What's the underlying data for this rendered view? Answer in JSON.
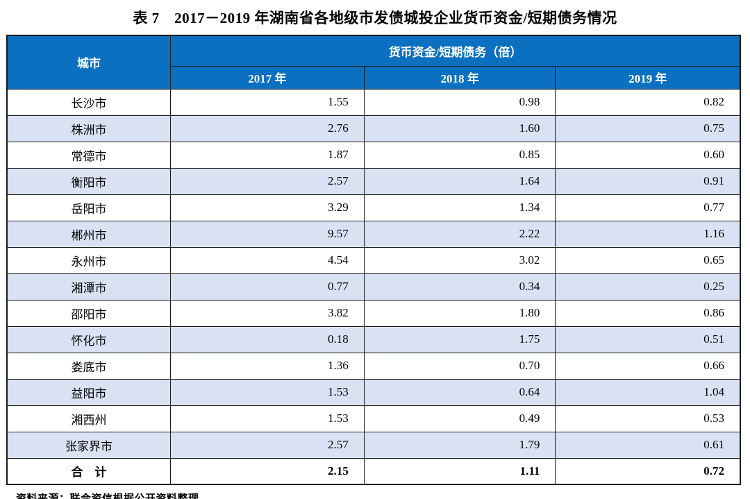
{
  "title": "表 7　2017－2019 年湖南省各地级市发债城投企业货币资金/短期债务情况",
  "colors": {
    "header_bg": "#0C70C0",
    "header_text": "#FFFFFF",
    "alt_row_bg": "#D9E2F3",
    "border": "#1A1A1A"
  },
  "table": {
    "corner_header": "城市",
    "group_header": "货币资金/短期债务（倍）",
    "year_headers": [
      "2017 年",
      "2018 年",
      "2019 年"
    ],
    "rows": [
      {
        "city": "长沙市",
        "values": [
          "1.55",
          "0.98",
          "0.82"
        ]
      },
      {
        "city": "株洲市",
        "values": [
          "2.76",
          "1.60",
          "0.75"
        ]
      },
      {
        "city": "常德市",
        "values": [
          "1.87",
          "0.85",
          "0.60"
        ]
      },
      {
        "city": "衡阳市",
        "values": [
          "2.57",
          "1.64",
          "0.91"
        ]
      },
      {
        "city": "岳阳市",
        "values": [
          "3.29",
          "1.34",
          "0.77"
        ]
      },
      {
        "city": "郴州市",
        "values": [
          "9.57",
          "2.22",
          "1.16"
        ]
      },
      {
        "city": "永州市",
        "values": [
          "4.54",
          "3.02",
          "0.65"
        ]
      },
      {
        "city": "湘潭市",
        "values": [
          "0.77",
          "0.34",
          "0.25"
        ]
      },
      {
        "city": "邵阳市",
        "values": [
          "3.82",
          "1.80",
          "0.86"
        ]
      },
      {
        "city": "怀化市",
        "values": [
          "0.18",
          "1.75",
          "0.51"
        ]
      },
      {
        "city": "娄底市",
        "values": [
          "1.36",
          "0.70",
          "0.66"
        ]
      },
      {
        "city": "益阳市",
        "values": [
          "1.53",
          "0.64",
          "1.04"
        ]
      },
      {
        "city": "湘西州",
        "values": [
          "1.53",
          "0.49",
          "0.53"
        ]
      },
      {
        "city": "张家界市",
        "values": [
          "2.57",
          "1.79",
          "0.61"
        ]
      }
    ],
    "total_row": {
      "label": "合　计",
      "values": [
        "2.15",
        "1.11",
        "0.72"
      ]
    }
  },
  "source": "资料来源：联合资信根据公开资料整理"
}
